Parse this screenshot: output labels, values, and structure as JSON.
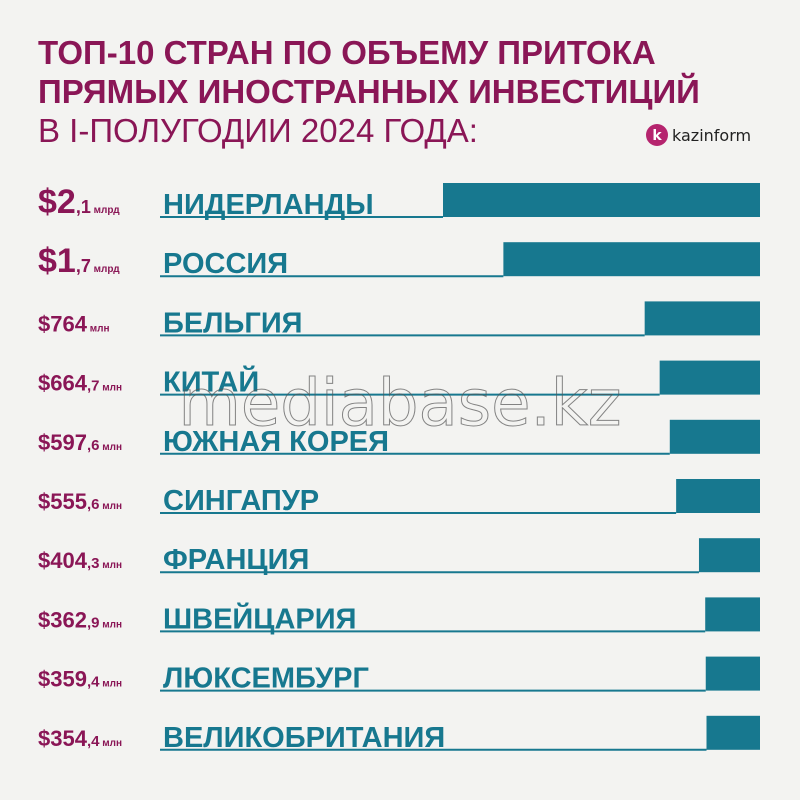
{
  "chart_data": {
    "type": "bar",
    "title_lines": [
      "ТОП-10 СТРАН ПО ОБЪЕМУ ПРИТОКА",
      "ПРЯМЫХ ИНОСТРАННЫХ ИНВЕСТИЦИЙ",
      "В I-ПОЛУГОДИИ 2024 ГОДА:"
    ],
    "logo": "kazinform",
    "watermark": "mediabase.kz",
    "categories": [
      "НИДЕРЛАНДЫ",
      "РОССИЯ",
      "БЕЛЬГИЯ",
      "КИТАЙ",
      "ЮЖНАЯ КОРЕЯ",
      "СИНГАПУР",
      "ФРАНЦИЯ",
      "ШВЕЙЦАРИЯ",
      "ЛЮКСЕМБУРГ",
      "ВЕЛИКОБРИТАНИЯ"
    ],
    "values": [
      2100,
      1700,
      764,
      664.7,
      597.6,
      555.6,
      404.3,
      362.9,
      359.4,
      354.4
    ],
    "value_labels": [
      "$2,1 млрд",
      "$1,7 млрд",
      "$764 млн",
      "$664,7 млн",
      "$597,6 млн",
      "$555,6 млн",
      "$404,3 млн",
      "$362,9 млн",
      "$359,4 млн",
      "$354,4 млн"
    ],
    "color": "#17788f",
    "label_color": "#8a1656"
  }
}
